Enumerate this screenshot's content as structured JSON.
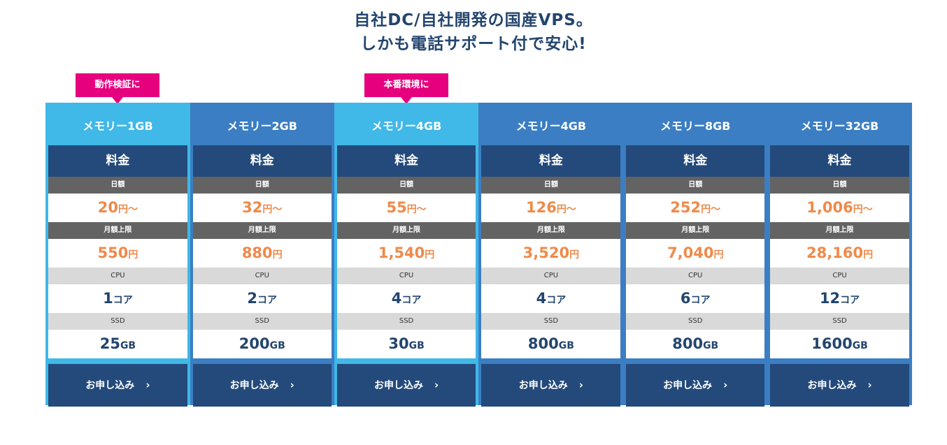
{
  "headline": {
    "line1": "自社DC/自社開発の国産VPS。",
    "line2": "しかも電話サポート付で安心!"
  },
  "tags": [
    {
      "label": "動作検証に"
    },
    {
      "label": "本番環境に"
    }
  ],
  "labels": {
    "price": "料金",
    "daily": "日額",
    "monthly_cap": "月額上限",
    "cpu": "CPU",
    "ssd": "SSD",
    "yen_from": "円～",
    "yen": "円",
    "core": "コア",
    "gb": "GB",
    "apply": "お申し込み",
    "chevron": "›"
  },
  "plans": [
    {
      "name": "メモリー1GB",
      "daily": "20",
      "monthly": "550",
      "cpu": "1",
      "ssd": "25"
    },
    {
      "name": "メモリー2GB",
      "daily": "32",
      "monthly": "880",
      "cpu": "2",
      "ssd": "200"
    },
    {
      "name": "メモリー4GB",
      "daily": "55",
      "monthly": "1,540",
      "cpu": "4",
      "ssd": "30"
    },
    {
      "name": "メモリー4GB",
      "daily": "126",
      "monthly": "3,520",
      "cpu": "4",
      "ssd": "800"
    },
    {
      "name": "メモリー8GB",
      "daily": "252",
      "monthly": "7,040",
      "cpu": "6",
      "ssd": "800"
    },
    {
      "name": "メモリー32GB",
      "daily": "1,006",
      "monthly": "28,160",
      "cpu": "12",
      "ssd": "1600"
    }
  ],
  "colors": {
    "accent_light": "#40b8e8",
    "accent_dark": "#3b7ec3",
    "navy": "#234a7a",
    "price_orange": "#ef8a4a",
    "tag_pink": "#e6007e"
  }
}
